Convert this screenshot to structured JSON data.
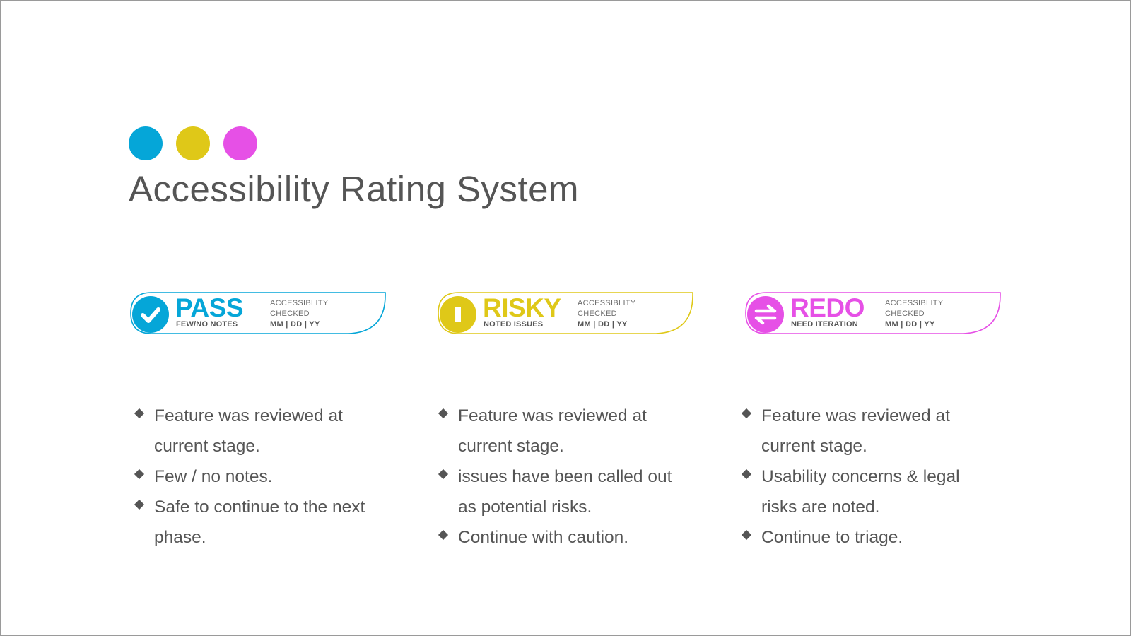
{
  "title": "Accessibility Rating System",
  "colors": {
    "pass": "#05a6d8",
    "risky": "#dfc818",
    "redo": "#e650e6",
    "text": "#555555"
  },
  "dots": [
    {
      "name": "blue-dot",
      "color": "#05a6d8"
    },
    {
      "name": "yellow-dot",
      "color": "#dfc818"
    },
    {
      "name": "magenta-dot",
      "color": "#e650e6"
    }
  ],
  "ratings": [
    {
      "label": "PASS",
      "sublabel": "FEW/NO NOTES",
      "meta_line1": "ACCESSIBLITY",
      "meta_line2": "CHECKED",
      "meta_date": "MM | DD | YY",
      "icon": "check-icon",
      "color": "#05a6d8",
      "bullets": [
        "Feature was reviewed at current stage.",
        "Few / no notes.",
        "Safe to continue to the next phase."
      ]
    },
    {
      "label": "RISKY",
      "sublabel": "NOTED ISSUES",
      "meta_line1": "ACCESSIBLITY",
      "meta_line2": "CHECKED",
      "meta_date": "MM | DD | YY",
      "icon": "warning-bar-icon",
      "color": "#dfc818",
      "bullets": [
        "Feature was reviewed at current stage.",
        "issues have been called out as potential risks.",
        "Continue with caution."
      ]
    },
    {
      "label": "REDO",
      "sublabel": "NEED ITERATION",
      "meta_line1": "ACCESSIBLITY",
      "meta_line2": "CHECKED",
      "meta_date": "MM | DD | YY",
      "icon": "swap-arrows-icon",
      "color": "#e650e6",
      "bullets": [
        "Feature was reviewed at current stage.",
        "Usability concerns & legal risks are noted.",
        "Continue to triage."
      ]
    }
  ]
}
